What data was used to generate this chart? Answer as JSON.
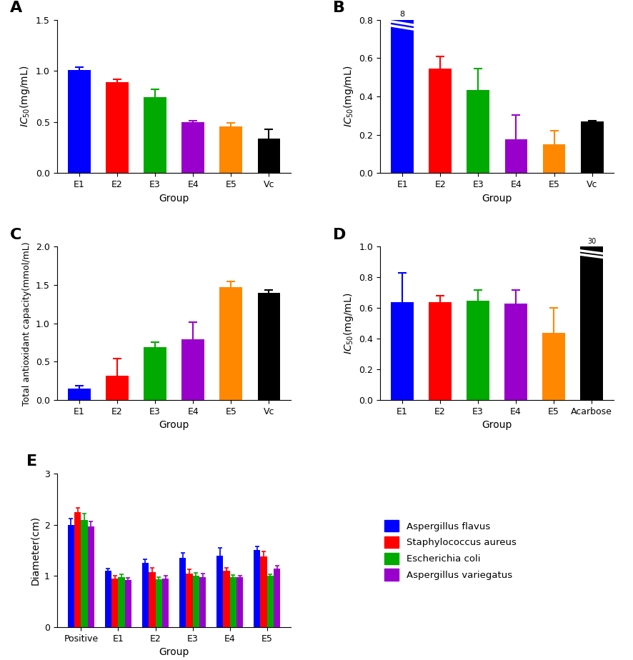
{
  "panel_A": {
    "title": "A",
    "categories": [
      "E1",
      "E2",
      "E3",
      "E4",
      "E5",
      "Vc"
    ],
    "values": [
      1.01,
      0.89,
      0.74,
      0.5,
      0.46,
      0.34
    ],
    "errors": [
      0.03,
      0.03,
      0.08,
      0.015,
      0.03,
      0.09
    ],
    "colors": [
      "#0000FF",
      "#FF0000",
      "#00AA00",
      "#9900CC",
      "#FF8800",
      "#000000"
    ],
    "ylabel": "$IC_{50}$(mg/mL)",
    "xlabel": "Group",
    "ylim": [
      0,
      1.5
    ],
    "yticks": [
      0.0,
      0.5,
      1.0,
      1.5
    ]
  },
  "panel_B": {
    "title": "B",
    "categories": [
      "E1",
      "E2",
      "E3",
      "E4",
      "E5",
      "Vc"
    ],
    "values": [
      0.82,
      0.545,
      0.435,
      0.175,
      0.15,
      0.27
    ],
    "errors": [
      0.02,
      0.065,
      0.11,
      0.13,
      0.07,
      0.005
    ],
    "colors": [
      "#0000FF",
      "#FF0000",
      "#00AA00",
      "#9900CC",
      "#FF8800",
      "#000000"
    ],
    "ylabel": "$IC_{50}$(mg/mL)",
    "xlabel": "Group",
    "ylim": [
      0,
      0.8
    ],
    "yticks": [
      0.0,
      0.2,
      0.4,
      0.6,
      0.8
    ]
  },
  "panel_C": {
    "title": "C",
    "categories": [
      "E1",
      "E2",
      "E3",
      "E4",
      "E5",
      "Vc"
    ],
    "values": [
      0.15,
      0.32,
      0.69,
      0.79,
      1.47,
      1.4
    ],
    "errors": [
      0.04,
      0.22,
      0.07,
      0.23,
      0.08,
      0.04
    ],
    "colors": [
      "#0000FF",
      "#FF0000",
      "#00AA00",
      "#9900CC",
      "#FF8800",
      "#000000"
    ],
    "ylabel": "Total antioxidant capacity(mmol/mL)",
    "xlabel": "Group",
    "ylim": [
      0,
      2.0
    ],
    "yticks": [
      0.0,
      0.5,
      1.0,
      1.5,
      2.0
    ]
  },
  "panel_D": {
    "title": "D",
    "categories": [
      "E1",
      "E2",
      "E3",
      "E4",
      "E5",
      "Acarbose"
    ],
    "values": [
      0.64,
      0.64,
      0.65,
      0.63,
      0.44,
      1.02
    ],
    "errors": [
      0.19,
      0.04,
      0.07,
      0.09,
      0.16,
      0.28
    ],
    "colors": [
      "#0000FF",
      "#FF0000",
      "#00AA00",
      "#9900CC",
      "#FF8800",
      "#000000"
    ],
    "ylabel": "$IC_{50}$(mg/mL)",
    "xlabel": "Group",
    "ylim": [
      0,
      1.0
    ],
    "yticks": [
      0.0,
      0.2,
      0.4,
      0.6,
      0.8,
      1.0
    ],
    "break_bar_idx": 5
  },
  "panel_E": {
    "title": "E",
    "categories": [
      "Positive",
      "E1",
      "E2",
      "E3",
      "E4",
      "E5"
    ],
    "series_names": [
      "Aspergillus flavus",
      "Staphylococcus aureus",
      "Escherichia coli",
      "Aspergillus variegatus"
    ],
    "series_values": [
      [
        2.0,
        1.1,
        1.25,
        1.35,
        1.4,
        1.5
      ],
      [
        2.25,
        0.95,
        1.08,
        1.05,
        1.1,
        1.38
      ],
      [
        2.1,
        0.98,
        0.93,
        1.0,
        0.97,
        1.0
      ],
      [
        1.97,
        0.92,
        0.95,
        0.98,
        0.97,
        1.15
      ]
    ],
    "series_errors": [
      [
        0.12,
        0.05,
        0.08,
        0.1,
        0.15,
        0.07
      ],
      [
        0.08,
        0.05,
        0.08,
        0.08,
        0.06,
        0.1
      ],
      [
        0.12,
        0.05,
        0.04,
        0.06,
        0.05,
        0.03
      ],
      [
        0.1,
        0.04,
        0.05,
        0.06,
        0.04,
        0.05
      ]
    ],
    "series_colors": [
      "#0000FF",
      "#FF0000",
      "#00AA00",
      "#9900CC"
    ],
    "ylabel": "Diameter(cm)",
    "xlabel": "Group",
    "ylim": [
      0,
      3.0
    ],
    "yticks": [
      0,
      1,
      2,
      3
    ]
  }
}
